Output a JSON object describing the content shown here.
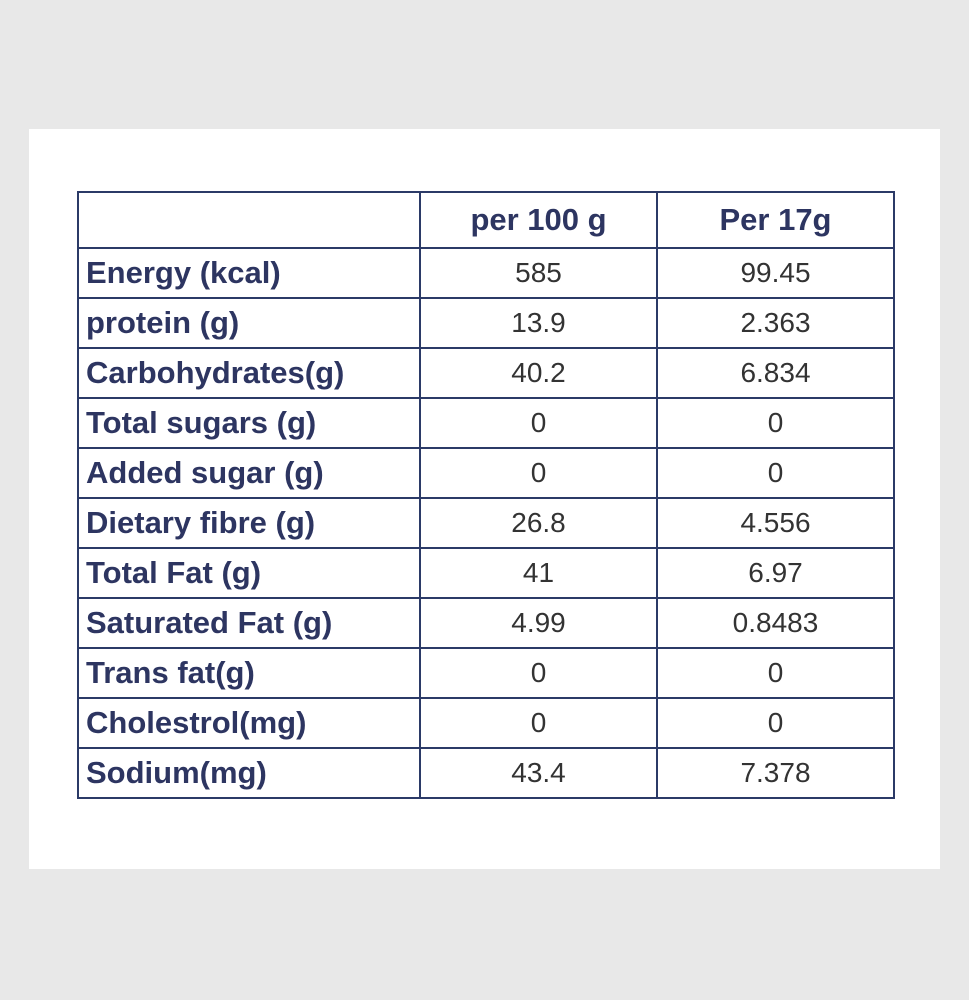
{
  "table": {
    "header": [
      "per 100 g",
      "Per 17g"
    ],
    "rows": [
      [
        "Energy (kcal)",
        585,
        99.45
      ],
      [
        "protein (g)",
        13.9,
        2.363
      ],
      [
        "Carbohydrates(g)",
        40.2,
        6.834
      ],
      [
        "Total sugars (g)",
        0,
        0
      ],
      [
        "Added sugar (g)",
        0,
        0
      ],
      [
        "Dietary fibre (g)",
        26.8,
        4.556
      ],
      [
        "Total Fat (g)",
        41,
        6.97
      ],
      [
        "Saturated Fat (g)",
        4.99,
        0.8483
      ],
      [
        "Trans fat(g)",
        0,
        0
      ],
      [
        "Cholestrol(mg)",
        0,
        0
      ],
      [
        "Sodium(mg)",
        43.4,
        7.378
      ]
    ]
  }
}
